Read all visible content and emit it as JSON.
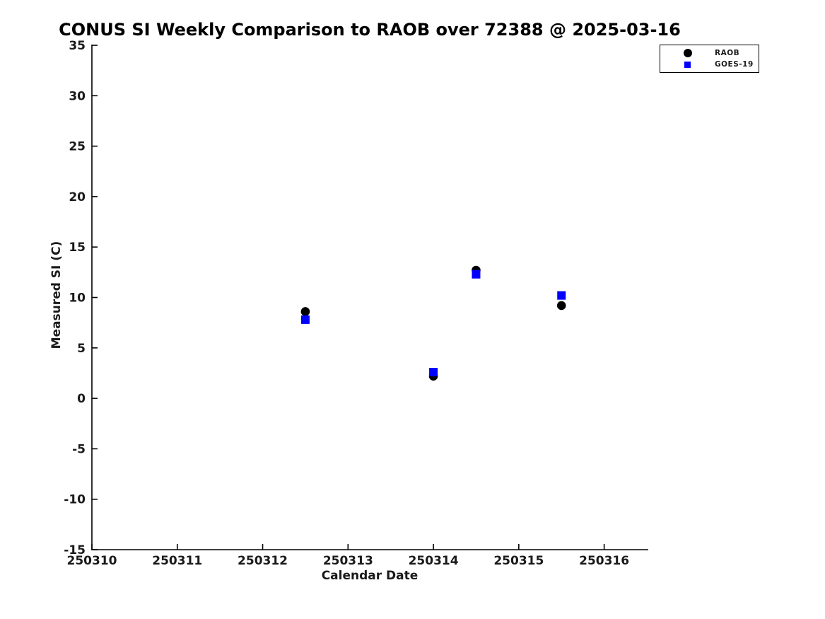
{
  "page": {
    "background": "#ffffff"
  },
  "chart_data": {
    "type": "scatter",
    "title": "CONUS SI Weekly Comparison to RAOB over 72388 @ 2025-03-16",
    "xlabel": "Calendar Date",
    "ylabel": "Measured SI (C)",
    "xlim": [
      250310,
      250316.5
    ],
    "ylim": [
      -15,
      35
    ],
    "x_ticks": [
      250310,
      250311,
      250312,
      250313,
      250314,
      250315,
      250316
    ],
    "y_ticks": [
      -15,
      -10,
      -5,
      0,
      5,
      10,
      15,
      20,
      25,
      30,
      35
    ],
    "grid": false,
    "axis_color": "#000000",
    "text_color": "#1a1a1a",
    "legend": {
      "position": "top-right",
      "border_color": "#000000",
      "background": "#ffffff"
    },
    "series": [
      {
        "name": "RAOB",
        "marker": "circle",
        "color": "#000000",
        "points": [
          [
            250312.5,
            8.6
          ],
          [
            250314.0,
            2.2
          ],
          [
            250314.5,
            12.7
          ],
          [
            250315.5,
            9.2
          ]
        ]
      },
      {
        "name": "GOES-19",
        "marker": "square",
        "color": "#0000ff",
        "points": [
          [
            250312.5,
            7.8
          ],
          [
            250314.0,
            2.6
          ],
          [
            250314.5,
            12.3
          ],
          [
            250315.5,
            10.2
          ]
        ]
      }
    ]
  }
}
